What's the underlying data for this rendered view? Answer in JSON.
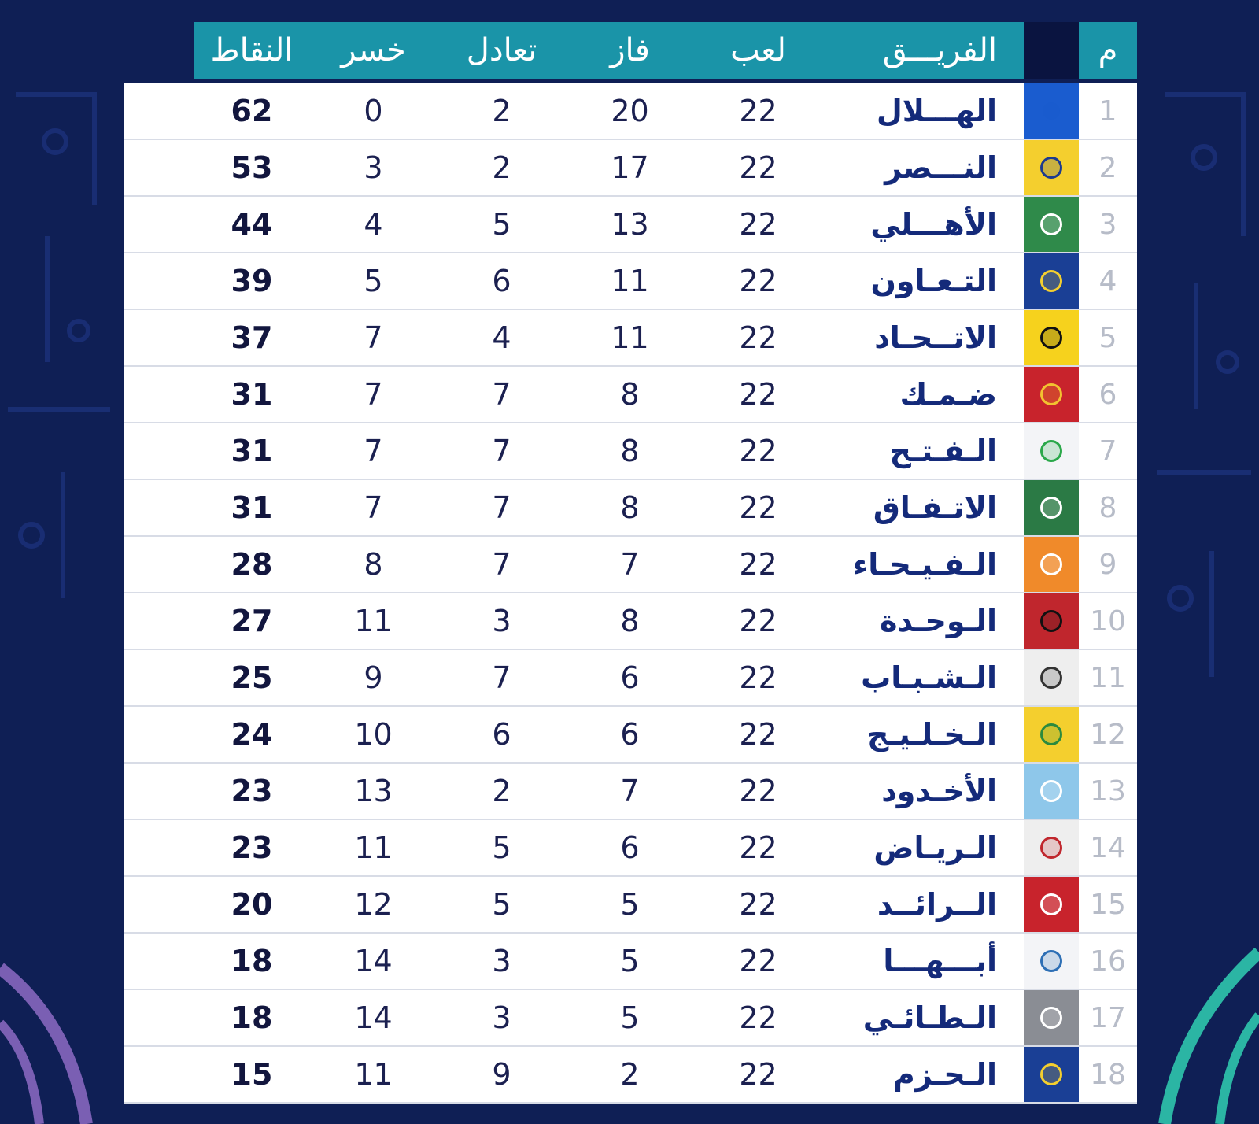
{
  "header": {
    "rank": "م",
    "team": "الفريـــق",
    "played": "لعب",
    "won": "فاز",
    "draw": "تعادل",
    "lost": "خسر",
    "points": "النقاط"
  },
  "rows": [
    {
      "rank": "1",
      "team": "الهـــلال",
      "played": "22",
      "won": "20",
      "draw": "2",
      "lost": "0",
      "points": "62",
      "logo_color": "#1a5ccf",
      "logo_bg": "#1a5ccf",
      "logo": "al-hilal-logo"
    },
    {
      "rank": "2",
      "team": "النـــصر",
      "played": "22",
      "won": "17",
      "draw": "2",
      "lost": "3",
      "points": "53",
      "logo_color": "#1c3a8f",
      "logo_bg": "#f4cf2e",
      "logo": "al-nassr-logo"
    },
    {
      "rank": "3",
      "team": "الأهـــلي",
      "played": "22",
      "won": "13",
      "draw": "5",
      "lost": "4",
      "points": "44",
      "logo_color": "#ffffff",
      "logo_bg": "#2f8a4a",
      "logo": "al-ahli-logo"
    },
    {
      "rank": "4",
      "team": "التـعـاون",
      "played": "22",
      "won": "11",
      "draw": "6",
      "lost": "5",
      "points": "39",
      "logo_color": "#f4cf2e",
      "logo_bg": "#1a3f95",
      "logo": "al-taawoun-logo"
    },
    {
      "rank": "5",
      "team": "الاتــحـاد",
      "played": "22",
      "won": "11",
      "draw": "4",
      "lost": "7",
      "points": "37",
      "logo_color": "#111111",
      "logo_bg": "#f6d21d",
      "logo": "al-ittihad-logo"
    },
    {
      "rank": "6",
      "team": "ضـمـك",
      "played": "22",
      "won": "8",
      "draw": "7",
      "lost": "7",
      "points": "31",
      "logo_color": "#f2c230",
      "logo_bg": "#c8232c",
      "logo": "damac-logo"
    },
    {
      "rank": "7",
      "team": "الـفـتـح",
      "played": "22",
      "won": "8",
      "draw": "7",
      "lost": "7",
      "points": "31",
      "logo_color": "#2aa84a",
      "logo_bg": "#f3f4f7",
      "logo": "al-fateh-logo"
    },
    {
      "rank": "8",
      "team": "الاتـفـاق",
      "played": "22",
      "won": "8",
      "draw": "7",
      "lost": "7",
      "points": "31",
      "logo_color": "#ffffff",
      "logo_bg": "#2b7a45",
      "logo": "al-ettifaq-logo"
    },
    {
      "rank": "9",
      "team": "الـفـيـحـاء",
      "played": "22",
      "won": "7",
      "draw": "7",
      "lost": "8",
      "points": "28",
      "logo_color": "#ffffff",
      "logo_bg": "#f08a2a",
      "logo": "al-fayha-logo"
    },
    {
      "rank": "10",
      "team": "الـوحـدة",
      "played": "22",
      "won": "8",
      "draw": "3",
      "lost": "11",
      "points": "27",
      "logo_color": "#111111",
      "logo_bg": "#c0262d",
      "logo": "al-wehda-logo"
    },
    {
      "rank": "11",
      "team": "الـشـبـاب",
      "played": "22",
      "won": "6",
      "draw": "7",
      "lost": "9",
      "points": "25",
      "logo_color": "#333333",
      "logo_bg": "#eeeeee",
      "logo": "al-shabab-logo"
    },
    {
      "rank": "12",
      "team": "الـخـلـيـج",
      "played": "22",
      "won": "6",
      "draw": "6",
      "lost": "10",
      "points": "24",
      "logo_color": "#2b8a3e",
      "logo_bg": "#f4cf2e",
      "logo": "al-khaleej-logo"
    },
    {
      "rank": "13",
      "team": "الأخـدود",
      "played": "22",
      "won": "7",
      "draw": "2",
      "lost": "13",
      "points": "23",
      "logo_color": "#ffffff",
      "logo_bg": "#8ec7ea",
      "logo": "al-akhdoud-logo"
    },
    {
      "rank": "14",
      "team": "الـريـاض",
      "played": "22",
      "won": "6",
      "draw": "5",
      "lost": "11",
      "points": "23",
      "logo_color": "#c0262d",
      "logo_bg": "#eeeeee",
      "logo": "al-riyadh-logo"
    },
    {
      "rank": "15",
      "team": "الــرائــد",
      "played": "22",
      "won": "5",
      "draw": "5",
      "lost": "12",
      "points": "20",
      "logo_color": "#ffffff",
      "logo_bg": "#c8232c",
      "logo": "al-raed-logo"
    },
    {
      "rank": "16",
      "team": "أبـــهـــا",
      "played": "22",
      "won": "5",
      "draw": "3",
      "lost": "14",
      "points": "18",
      "logo_color": "#2d6fb5",
      "logo_bg": "#f3f4f7",
      "logo": "abha-logo"
    },
    {
      "rank": "17",
      "team": "الـطـائـي",
      "played": "22",
      "won": "5",
      "draw": "3",
      "lost": "14",
      "points": "18",
      "logo_color": "#ffffff",
      "logo_bg": "#8a8d94",
      "logo": "al-taee-logo"
    },
    {
      "rank": "18",
      "team": "الـحـزم",
      "played": "22",
      "won": "2",
      "draw": "9",
      "lost": "11",
      "points": "15",
      "logo_color": "#f4cf2e",
      "logo_bg": "#1a3f95",
      "logo": "al-hazem-logo"
    }
  ]
}
